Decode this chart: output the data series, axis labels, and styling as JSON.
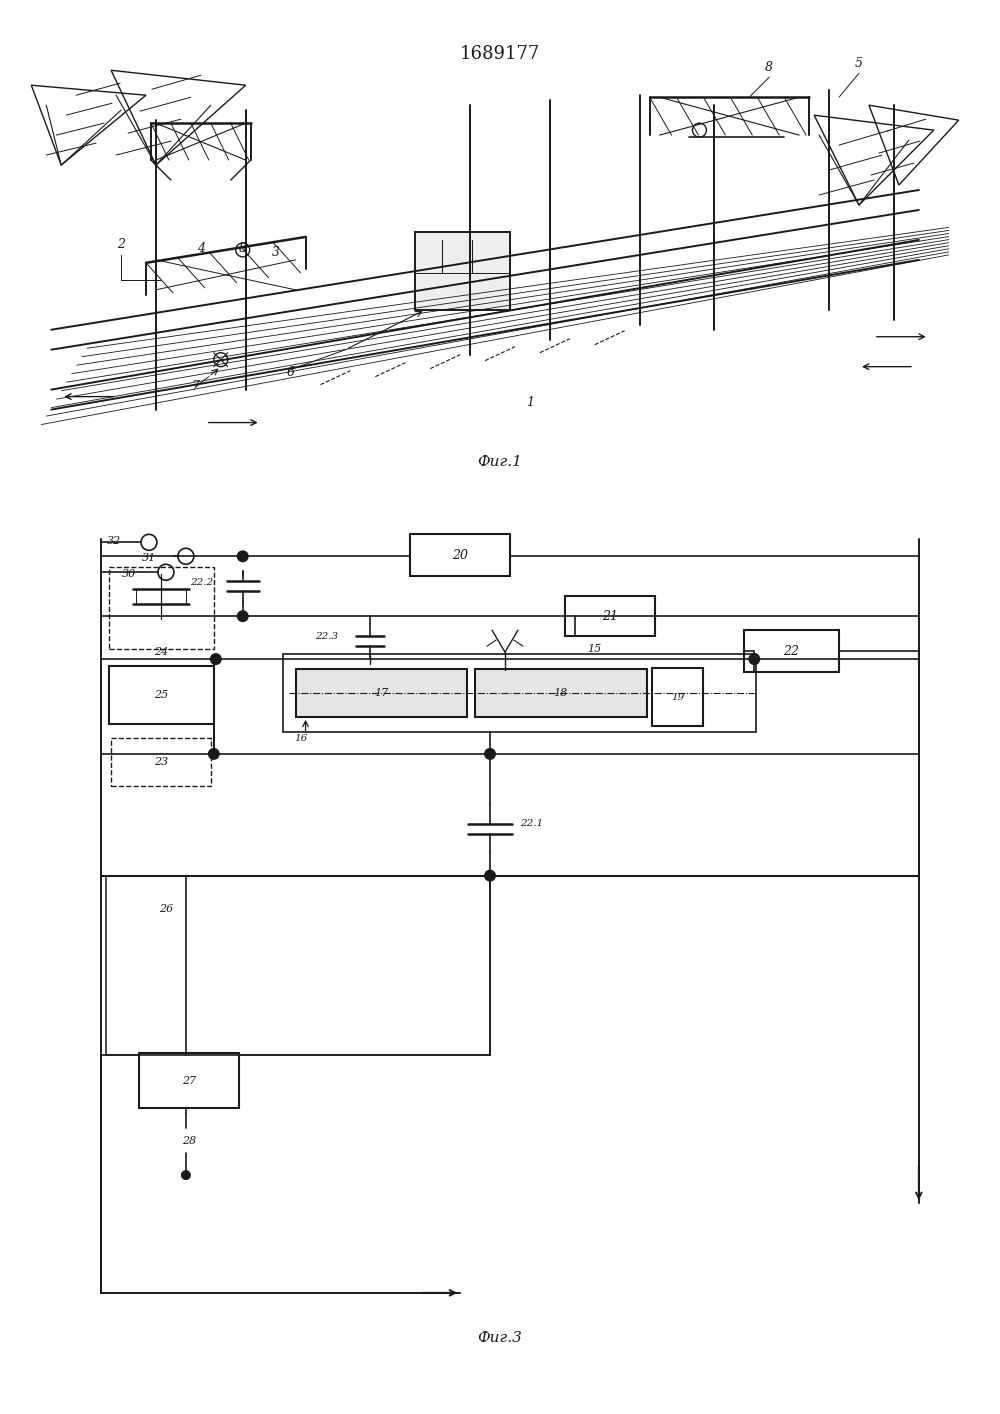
{
  "title_text": "1689177",
  "fig1_label": "Фиг.1",
  "fig3_label": "Фиг.3",
  "bg_color": "#ffffff",
  "line_color": "#1a1a1a"
}
